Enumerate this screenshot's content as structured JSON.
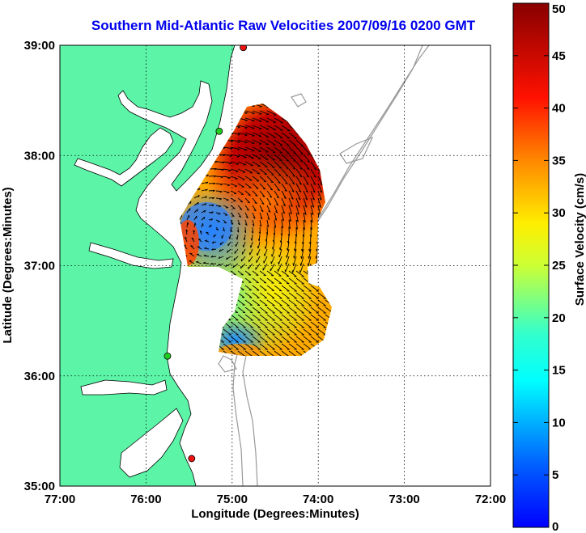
{
  "title": "Southern Mid-Atlantic Raw Velocities 2007/09/16 0200 GMT",
  "x_axis": {
    "label": "Longitude (Degrees:Minutes)",
    "ticks": [
      "77:00",
      "76:00",
      "75:00",
      "74:00",
      "73:00",
      "72:00"
    ],
    "range": [
      -77,
      -72
    ]
  },
  "y_axis": {
    "label": "Latitude (Degrees:Minutes)",
    "ticks": [
      "39:00",
      "38:00",
      "37:00",
      "36:00",
      "35:00"
    ],
    "range": [
      35,
      39
    ]
  },
  "colorbar": {
    "label": "Surface Velocity (cm/s)",
    "ticks": [
      "50",
      "45",
      "40",
      "35",
      "30",
      "25",
      "20",
      "15",
      "10",
      "5",
      "0"
    ],
    "range": [
      0,
      50
    ],
    "colormap": "jet"
  },
  "colors": {
    "land": "#5cf5a8",
    "water": "#ffffff",
    "bathymetry": "#999999",
    "station_green": "#22cc22",
    "station_red": "#ee1111",
    "title": "#0000ee"
  },
  "grid": "dotted",
  "stations": [
    {
      "lon": -74.87,
      "lat": 38.98,
      "color": "red"
    },
    {
      "lon": -75.15,
      "lat": 38.22,
      "color": "green"
    },
    {
      "lon": -75.75,
      "lat": 36.18,
      "color": "green"
    },
    {
      "lon": -75.47,
      "lat": 35.25,
      "color": "red"
    }
  ]
}
